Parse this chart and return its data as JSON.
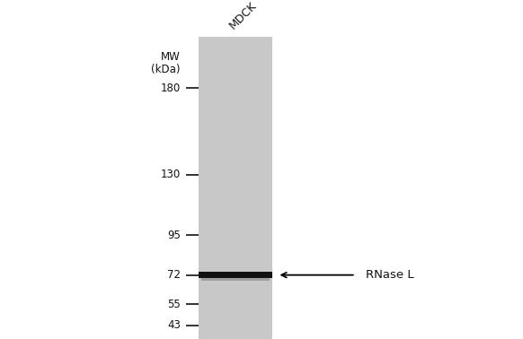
{
  "background_color": "#ffffff",
  "gel_color": "#c8c8c8",
  "band_color": "#111111",
  "mw_markers": [
    180,
    130,
    95,
    72,
    55,
    43
  ],
  "band_mw": 72,
  "band_label": "RNase L",
  "lane_label": "MDCK",
  "mw_label_line1": "MW",
  "mw_label_line2": "(kDa)",
  "arrow_color": "#000000",
  "text_color": "#111111",
  "tick_color": "#111111",
  "fig_width": 5.82,
  "fig_height": 3.78,
  "dpi": 100
}
